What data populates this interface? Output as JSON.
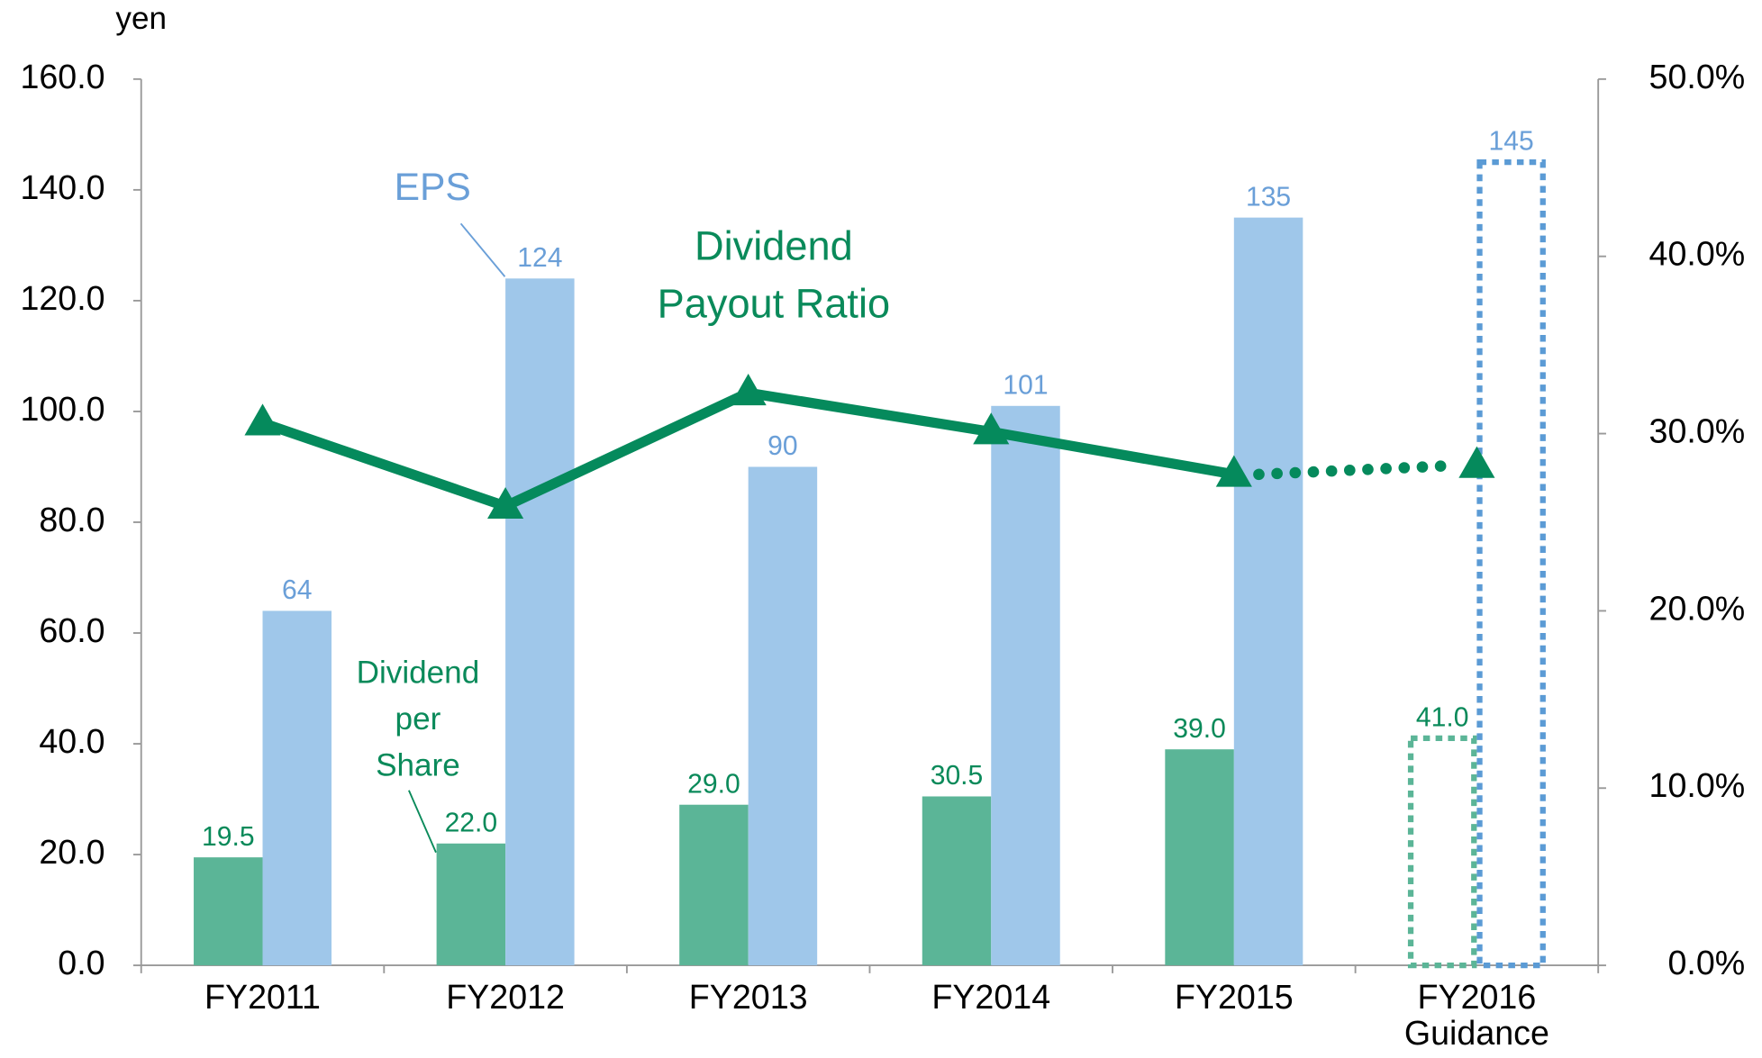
{
  "chart_data": {
    "type": "bar_line",
    "y_axis_label": "yen",
    "annotations": [
      "EPS",
      "Dividend Payout Ratio",
      "Dividend per Share"
    ],
    "categories": [
      "FY2011",
      "FY2012",
      "FY2013",
      "FY2014",
      "FY2015",
      "FY2016 Guidance"
    ],
    "series": [
      {
        "name": "Dividend per Share",
        "type": "bar",
        "color": "#5bb597",
        "label_color": "#0a8a5a",
        "values": [
          19.5,
          22.0,
          29.0,
          30.5,
          39.0,
          41.0
        ],
        "value_labels": [
          "19.5",
          "22.0",
          "29.0",
          "30.5",
          "39.0",
          "41.0"
        ]
      },
      {
        "name": "EPS",
        "type": "bar",
        "color": "#9fc7ea",
        "label_color": "#6a9fd8",
        "values": [
          64,
          124,
          90,
          101,
          135,
          145
        ]
      },
      {
        "name": "Dividend Payout Ratio",
        "type": "line",
        "axis": "y2",
        "color": "#058a5c",
        "values": [
          30.6,
          25.9,
          32.3,
          30.1,
          27.7,
          28.2
        ]
      }
    ],
    "ylim": [
      0,
      160
    ],
    "yticks": [
      {
        "value": 0,
        "label": "0.0"
      },
      {
        "value": 20,
        "label": "20.0"
      },
      {
        "value": 40,
        "label": "40.0"
      },
      {
        "value": 60,
        "label": "60.0"
      },
      {
        "value": 80,
        "label": "80.0"
      },
      {
        "value": 100,
        "label": "100.0"
      },
      {
        "value": 120,
        "label": "120.0"
      },
      {
        "value": 140,
        "label": "140.0"
      },
      {
        "value": 160,
        "label": "160.0"
      }
    ],
    "y2lim": [
      0,
      50
    ],
    "y2ticks": [
      {
        "value": 0,
        "label": "0.0%"
      },
      {
        "value": 10,
        "label": "10.0%"
      },
      {
        "value": 20,
        "label": "20.0%"
      },
      {
        "value": 30,
        "label": "30.0%"
      },
      {
        "value": 40,
        "label": "40.0%"
      },
      {
        "value": 50,
        "label": "50.0%"
      }
    ],
    "grid": false
  }
}
